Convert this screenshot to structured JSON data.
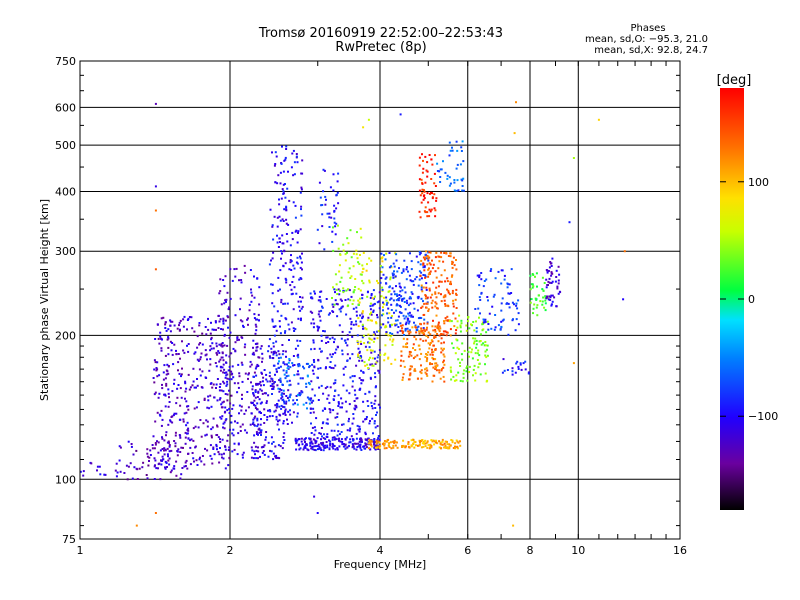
{
  "chart_data": {
    "type": "scatter",
    "title": "Tromsø 20160919 22:52:00–22:53:43",
    "subtitle": "RwPretec (8p)",
    "xlabel": "Frequency [MHz]",
    "ylabel": "Stationary phase Virtual Height [km]",
    "x_scale": "log",
    "y_scale": "log",
    "xlim": [
      1,
      16
    ],
    "ylim": [
      75,
      750
    ],
    "x_ticks": [
      1,
      2,
      4,
      6,
      8,
      10,
      16
    ],
    "x_tick_labels": [
      "1",
      "2",
      "4",
      "6",
      "8",
      "10",
      "16"
    ],
    "y_ticks": [
      75,
      100,
      200,
      300,
      400,
      500,
      600,
      750
    ],
    "y_tick_labels": [
      "75",
      "100",
      "200",
      "300",
      "400",
      "500",
      "600",
      "750"
    ],
    "grid": true,
    "color_key": "phase_deg",
    "phase_stats": {
      "heading": "Phases",
      "o_line": "mean, sd,O: −95.3, 21.0",
      "x_line": "mean, sd,X:  92.8, 24.7"
    },
    "colorbar": {
      "label": "[deg]",
      "range": [
        -180,
        180
      ],
      "ticks": [
        100,
        0,
        -100
      ],
      "tick_labels": [
        "100",
        "0",
        "−100"
      ]
    },
    "clusters": [
      {
        "f_min": 1.4,
        "f_max": 2.0,
        "h_min": 105,
        "h_max": 220,
        "phase": -120,
        "count": 420
      },
      {
        "f_min": 1.9,
        "f_max": 2.3,
        "h_min": 110,
        "h_max": 280,
        "phase": -115,
        "count": 220
      },
      {
        "f_min": 1.2,
        "f_max": 1.6,
        "h_min": 100,
        "h_max": 120,
        "phase": -125,
        "count": 60
      },
      {
        "f_min": 1.0,
        "f_max": 1.2,
        "h_min": 100,
        "h_max": 112,
        "phase": -110,
        "count": 15
      },
      {
        "f_min": 2.2,
        "f_max": 2.6,
        "h_min": 110,
        "h_max": 190,
        "phase": -105,
        "count": 200
      },
      {
        "f_min": 2.4,
        "f_max": 2.8,
        "h_min": 130,
        "h_max": 500,
        "phase": -100,
        "count": 260
      },
      {
        "f_min": 2.5,
        "f_max": 2.9,
        "h_min": 140,
        "h_max": 180,
        "phase": -60,
        "count": 60
      },
      {
        "f_min": 2.9,
        "f_max": 4.0,
        "h_min": 115,
        "h_max": 250,
        "phase": -100,
        "count": 420
      },
      {
        "f_min": 3.0,
        "f_max": 3.3,
        "h_min": 300,
        "h_max": 450,
        "phase": -95,
        "count": 40
      },
      {
        "f_min": 2.7,
        "f_max": 4.0,
        "h_min": 115,
        "h_max": 122,
        "phase": -105,
        "count": 160
      },
      {
        "f_min": 3.6,
        "f_max": 4.3,
        "h_min": 170,
        "h_max": 300,
        "phase": 70,
        "count": 120
      },
      {
        "f_min": 3.2,
        "f_max": 3.7,
        "h_min": 230,
        "h_max": 340,
        "phase": 50,
        "count": 60
      },
      {
        "f_min": 4.0,
        "f_max": 5.0,
        "h_min": 200,
        "h_max": 300,
        "phase": -80,
        "count": 200
      },
      {
        "f_min": 4.4,
        "f_max": 5.4,
        "h_min": 160,
        "h_max": 210,
        "phase": 130,
        "count": 160
      },
      {
        "f_min": 4.8,
        "f_max": 5.7,
        "h_min": 200,
        "h_max": 300,
        "phase": 140,
        "count": 180
      },
      {
        "f_min": 4.8,
        "f_max": 5.2,
        "h_min": 350,
        "h_max": 480,
        "phase": 165,
        "count": 60
      },
      {
        "f_min": 5.2,
        "f_max": 5.9,
        "h_min": 400,
        "h_max": 510,
        "phase": -60,
        "count": 40
      },
      {
        "f_min": 3.8,
        "f_max": 5.8,
        "h_min": 116,
        "h_max": 121,
        "phase": 110,
        "count": 150
      },
      {
        "f_min": 5.5,
        "f_max": 6.6,
        "h_min": 160,
        "h_max": 220,
        "phase": 40,
        "count": 110
      },
      {
        "f_min": 6.2,
        "f_max": 7.6,
        "h_min": 200,
        "h_max": 280,
        "phase": -80,
        "count": 80
      },
      {
        "f_min": 8.0,
        "f_max": 8.7,
        "h_min": 220,
        "h_max": 270,
        "phase": 20,
        "count": 40
      },
      {
        "f_min": 8.6,
        "f_max": 9.2,
        "h_min": 230,
        "h_max": 290,
        "phase": -115,
        "count": 50
      },
      {
        "f_min": 7.0,
        "f_max": 8.0,
        "h_min": 165,
        "h_max": 180,
        "phase": -95,
        "count": 20
      }
    ],
    "sparse_points": [
      {
        "x": 1.42,
        "y": 610,
        "phase": -130
      },
      {
        "x": 1.42,
        "y": 410,
        "phase": -110
      },
      {
        "x": 1.42,
        "y": 365,
        "phase": 130
      },
      {
        "x": 1.42,
        "y": 275,
        "phase": 140
      },
      {
        "x": 1.42,
        "y": 85,
        "phase": 130
      },
      {
        "x": 1.3,
        "y": 80,
        "phase": 120
      },
      {
        "x": 2.95,
        "y": 92,
        "phase": -110
      },
      {
        "x": 3.0,
        "y": 85,
        "phase": -100
      },
      {
        "x": 7.5,
        "y": 615,
        "phase": 120
      },
      {
        "x": 7.45,
        "y": 530,
        "phase": 100
      },
      {
        "x": 7.4,
        "y": 80,
        "phase": 100
      },
      {
        "x": 9.8,
        "y": 470,
        "phase": 50
      },
      {
        "x": 11.0,
        "y": 565,
        "phase": 90
      },
      {
        "x": 12.4,
        "y": 300,
        "phase": 130
      },
      {
        "x": 12.3,
        "y": 238,
        "phase": -100
      },
      {
        "x": 9.8,
        "y": 175,
        "phase": 110
      },
      {
        "x": 9.6,
        "y": 345,
        "phase": -90
      },
      {
        "x": 4.4,
        "y": 580,
        "phase": -90
      },
      {
        "x": 3.8,
        "y": 565,
        "phase": 60
      },
      {
        "x": 3.7,
        "y": 545,
        "phase": 80
      }
    ]
  }
}
